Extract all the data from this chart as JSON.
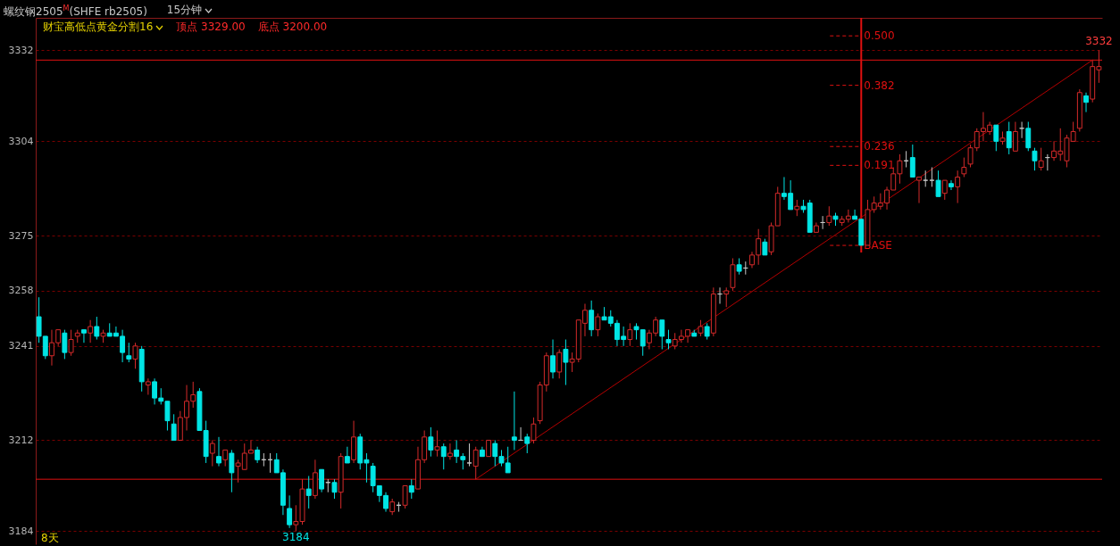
{
  "chart_data": {
    "type": "candlestick",
    "title": "螺纹钢2505$^{M}$(SHFE rb2505)",
    "subtitle": "15分钟",
    "annotations": [
      "财宝高低点黄金分割16",
      "顶点 3329.00",
      "底点 3200.00",
      "8天",
      {
        "text": "3332",
        "y": 3332
      },
      {
        "text": "3184",
        "y": 3184
      }
    ],
    "categories": [
      null,
      null,
      null,
      null,
      null,
      null,
      null,
      null,
      null,
      null,
      null,
      null,
      null,
      null,
      null,
      null,
      null,
      null,
      null,
      null,
      null,
      null,
      null,
      null,
      null,
      null,
      null,
      null,
      null,
      null,
      null,
      null,
      null,
      null,
      null,
      null,
      null,
      null,
      null,
      null,
      null,
      null,
      null,
      null,
      null,
      null,
      null,
      null,
      null,
      null,
      null,
      null,
      null,
      null,
      null,
      null,
      null,
      null,
      null,
      null,
      null,
      null,
      null,
      null,
      null,
      null,
      null,
      null,
      null,
      null,
      null,
      null,
      null,
      null,
      null,
      null,
      null,
      null,
      null,
      null,
      null,
      null,
      null,
      null,
      null,
      null,
      null,
      null,
      null,
      null,
      null,
      null,
      null,
      null,
      null,
      null,
      null,
      null,
      null,
      null,
      null,
      null,
      null,
      null,
      null,
      null,
      null,
      null,
      null,
      null,
      null,
      null,
      null,
      null,
      null,
      null,
      null,
      null,
      null,
      null,
      null,
      null,
      null,
      null,
      null,
      null,
      null,
      null,
      null,
      null,
      null,
      null,
      null,
      null,
      null,
      null,
      null,
      null,
      null,
      null,
      null,
      null,
      null,
      null,
      null,
      null,
      null,
      null,
      null,
      null,
      null,
      null,
      null,
      null,
      null,
      null,
      null,
      null,
      null,
      null,
      null,
      null,
      null,
      null,
      null,
      null
    ],
    "ohlc": [
      [
        3250,
        3256,
        3242,
        3244
      ],
      [
        3244,
        3244,
        3237,
        3238
      ],
      [
        3238,
        3246,
        3235,
        3242
      ],
      [
        3242,
        3246,
        3241,
        3246
      ],
      [
        3245,
        3246,
        3237,
        3239
      ],
      [
        3239,
        3246,
        3238,
        3243
      ],
      [
        3244,
        3246,
        3242,
        3245
      ],
      [
        3246,
        3246,
        3242,
        3245
      ],
      [
        3245,
        3249,
        3242,
        3247
      ],
      [
        3247,
        3250,
        3243,
        3244
      ],
      [
        3244,
        3246,
        3242,
        3245
      ],
      [
        3245,
        3248,
        3244,
        3244
      ],
      [
        3245,
        3247,
        3244,
        3244
      ],
      [
        3244,
        3246,
        3236,
        3239
      ],
      [
        3238,
        3242,
        3236,
        3237
      ],
      [
        3237,
        3242,
        3234,
        3241
      ],
      [
        3240,
        3241,
        3227,
        3230
      ],
      [
        3229,
        3231,
        3226,
        3230
      ],
      [
        3230,
        3231,
        3223,
        3225
      ],
      [
        3225,
        3228,
        3223,
        3224
      ],
      [
        3224,
        3224,
        3215,
        3218
      ],
      [
        3217,
        3220,
        3212,
        3212
      ],
      [
        3212,
        3221,
        3212,
        3219
      ],
      [
        3219,
        3229,
        3215,
        3224
      ],
      [
        3224,
        3230,
        3222,
        3226
      ],
      [
        3227,
        3228,
        3215,
        3215
      ],
      [
        3215,
        3218,
        3205,
        3207
      ],
      [
        3208,
        3212,
        3204,
        3211
      ],
      [
        3207,
        3213,
        3204,
        3205
      ],
      [
        3206,
        3209,
        3204,
        3209
      ],
      [
        3208,
        3209,
        3196,
        3202
      ],
      [
        3204,
        3206,
        3199,
        3205
      ],
      [
        3203,
        3211,
        3203,
        3208
      ],
      [
        3208,
        3212,
        3208,
        3209
      ],
      [
        3209,
        3210,
        3205,
        3206
      ],
      [
        3206,
        3208,
        3204,
        3206
      ],
      [
        3206,
        3208,
        3202,
        3206
      ],
      [
        3206,
        3208,
        3202,
        3202
      ],
      [
        3202,
        3203,
        3189,
        3192
      ],
      [
        3191,
        3195,
        3185,
        3186
      ],
      [
        3186,
        3192,
        3184,
        3187
      ],
      [
        3187,
        3200,
        3186,
        3197
      ],
      [
        3197,
        3201,
        3191,
        3195
      ],
      [
        3195,
        3206,
        3194,
        3202
      ],
      [
        3203,
        3203,
        3196,
        3197
      ],
      [
        3199,
        3200,
        3196,
        3199
      ],
      [
        3199,
        3200,
        3194,
        3196
      ],
      [
        3196,
        3208,
        3191,
        3207
      ],
      [
        3207,
        3210,
        3205,
        3205
      ],
      [
        3206,
        3218,
        3205,
        3213
      ],
      [
        3213,
        3214,
        3203,
        3205
      ],
      [
        3206,
        3208,
        3199,
        3205
      ],
      [
        3204,
        3205,
        3196,
        3198
      ],
      [
        3198,
        3198,
        3193,
        3195
      ],
      [
        3195,
        3196,
        3190,
        3191
      ],
      [
        3190,
        3194,
        3189,
        3193
      ],
      [
        3192,
        3193,
        3190,
        3192
      ],
      [
        3192,
        3198,
        3191,
        3198
      ],
      [
        3198,
        3200,
        3194,
        3196
      ],
      [
        3197,
        3210,
        3197,
        3206
      ],
      [
        3206,
        3215,
        3205,
        3213
      ],
      [
        3213,
        3216,
        3207,
        3209
      ],
      [
        3209,
        3215,
        3207,
        3210
      ],
      [
        3210,
        3211,
        3203,
        3207
      ],
      [
        3207,
        3211,
        3206,
        3208
      ],
      [
        3209,
        3212,
        3205,
        3207
      ],
      [
        3207,
        3208,
        3203,
        3206
      ],
      [
        3205,
        3211,
        3204,
        3205
      ],
      [
        3204,
        3210,
        3200,
        3209
      ],
      [
        3209,
        3210,
        3207,
        3207
      ],
      [
        3207,
        3212,
        3207,
        3212
      ],
      [
        3211,
        3212,
        3204,
        3207
      ],
      [
        3207,
        3209,
        3204,
        3205
      ],
      [
        3205,
        3210,
        3202,
        3202
      ],
      [
        3213,
        3227,
        3209,
        3212
      ],
      [
        3212,
        3216,
        3212,
        3212
      ],
      [
        3213,
        3214,
        3208,
        3211
      ],
      [
        3212,
        3219,
        3211,
        3217
      ],
      [
        3218,
        3230,
        3217,
        3229
      ],
      [
        3229,
        3239,
        3227,
        3238
      ],
      [
        3238,
        3243,
        3231,
        3233
      ],
      [
        3233,
        3240,
        3231,
        3239
      ],
      [
        3240,
        3243,
        3229,
        3236
      ],
      [
        3236,
        3239,
        3233,
        3237
      ],
      [
        3237,
        3249,
        3236,
        3249
      ],
      [
        3248,
        3254,
        3244,
        3252
      ],
      [
        3252,
        3255,
        3244,
        3246
      ],
      [
        3246,
        3251,
        3244,
        3250
      ],
      [
        3250,
        3253,
        3249,
        3249
      ],
      [
        3250,
        3252,
        3247,
        3248
      ],
      [
        3248,
        3249,
        3241,
        3243
      ],
      [
        3244,
        3247,
        3241,
        3243
      ],
      [
        3243,
        3248,
        3241,
        3246
      ],
      [
        3247,
        3248,
        3243,
        3246
      ],
      [
        3246,
        3246,
        3238,
        3241
      ],
      [
        3242,
        3246,
        3240,
        3245
      ],
      [
        3245,
        3250,
        3244,
        3249
      ],
      [
        3249,
        3249,
        3240,
        3244
      ],
      [
        3243,
        3246,
        3240,
        3242
      ],
      [
        3241,
        3245,
        3240,
        3243
      ],
      [
        3243,
        3246,
        3242,
        3244
      ],
      [
        3244,
        3246,
        3242,
        3246
      ],
      [
        3245,
        3246,
        3244,
        3244
      ],
      [
        3245,
        3249,
        3244,
        3247
      ],
      [
        3247,
        3248,
        3243,
        3244
      ],
      [
        3245,
        3259,
        3244,
        3257
      ],
      [
        3257,
        3259,
        3254,
        3257
      ],
      [
        3257,
        3259,
        3253,
        3258
      ],
      [
        3259,
        3268,
        3258,
        3266
      ],
      [
        3266,
        3268,
        3263,
        3264
      ],
      [
        3265,
        3267,
        3263,
        3265
      ],
      [
        3266,
        3270,
        3265,
        3269
      ],
      [
        3269,
        3277,
        3266,
        3274
      ],
      [
        3273,
        3274,
        3269,
        3269
      ],
      [
        3270,
        3279,
        3269,
        3278
      ],
      [
        3278,
        3290,
        3278,
        3288
      ],
      [
        3288,
        3293,
        3286,
        3287
      ],
      [
        3288,
        3292,
        3283,
        3283
      ],
      [
        3283,
        3286,
        3281,
        3284
      ],
      [
        3284,
        3286,
        3282,
        3283
      ],
      [
        3285,
        3286,
        3276,
        3276
      ],
      [
        3276,
        3279,
        3276,
        3278
      ],
      [
        3279,
        3281,
        3277,
        3279
      ],
      [
        3279,
        3284,
        3278,
        3281
      ],
      [
        3281,
        3282,
        3278,
        3280
      ],
      [
        3279,
        3281,
        3278,
        3280
      ],
      [
        3280,
        3283,
        3279,
        3281
      ],
      [
        3281,
        3283,
        3280,
        3280
      ],
      [
        3280,
        3280,
        3272,
        3272
      ],
      [
        3272,
        3286,
        3272,
        3283
      ],
      [
        3283,
        3287,
        3282,
        3285
      ],
      [
        3284,
        3288,
        3283,
        3285
      ],
      [
        3285,
        3290,
        3283,
        3289
      ],
      [
        3289,
        3296,
        3289,
        3294
      ],
      [
        3294,
        3300,
        3291,
        3298
      ],
      [
        3298,
        3301,
        3296,
        3298
      ],
      [
        3299,
        3303,
        3293,
        3293
      ],
      [
        3292,
        3293,
        3285,
        3293
      ],
      [
        3292,
        3295,
        3290,
        3292
      ],
      [
        3292,
        3296,
        3290,
        3292
      ],
      [
        3292,
        3295,
        3287,
        3287
      ],
      [
        3288,
        3292,
        3286,
        3292
      ],
      [
        3291,
        3292,
        3289,
        3290
      ],
      [
        3290,
        3295,
        3285,
        3293
      ],
      [
        3294,
        3299,
        3293,
        3296
      ],
      [
        3297,
        3303,
        3296,
        3302
      ],
      [
        3302,
        3308,
        3301,
        3307
      ],
      [
        3307,
        3313,
        3304,
        3308
      ],
      [
        3307,
        3310,
        3306,
        3309
      ],
      [
        3309,
        3309,
        3301,
        3304
      ],
      [
        3304,
        3307,
        3303,
        3305
      ],
      [
        3307,
        3310,
        3300,
        3302
      ],
      [
        3301,
        3310,
        3301,
        3307
      ],
      [
        3308,
        3310,
        3305,
        3308
      ],
      [
        3308,
        3310,
        3301,
        3302
      ],
      [
        3301,
        3302,
        3295,
        3298
      ],
      [
        3296,
        3302,
        3295,
        3298
      ],
      [
        3299,
        3300,
        3295,
        3299
      ],
      [
        3299,
        3304,
        3298,
        3301
      ],
      [
        3300,
        3308,
        3298,
        3301
      ],
      [
        3298,
        3306,
        3296,
        3305
      ],
      [
        3304,
        3310,
        3304,
        3307
      ],
      [
        3308,
        3320,
        3307,
        3319
      ],
      [
        3318,
        3319,
        3313,
        3316
      ],
      [
        3317,
        3329,
        3316,
        3327
      ],
      [
        3326,
        3332,
        3322,
        3327
      ]
    ],
    "colors": [
      "#00e5e5",
      "#00e5e5",
      "#d42a2a",
      "#d42a2a",
      "#00e5e5",
      "#d42a2a",
      "#d42a2a",
      "#00e5e5",
      "#d42a2a",
      "#00e5e5",
      "#d42a2a",
      "#00e5e5",
      "#00e5e5",
      "#00e5e5",
      "#00e5e5",
      "#d42a2a",
      "#00e5e5",
      "#d42a2a",
      "#00e5e5",
      "#00e5e5",
      "#00e5e5",
      "#00e5e5",
      "#d42a2a",
      "#d42a2a",
      "#d42a2a",
      "#00e5e5",
      "#00e5e5",
      "#d42a2a",
      "#00e5e5",
      "#d42a2a",
      "#00e5e5",
      "#d42a2a",
      "#d42a2a",
      "#d42a2a",
      "#00e5e5",
      "#c8c8c8",
      "#c8c8c8",
      "#00e5e5",
      "#00e5e5",
      "#00e5e5",
      "#d42a2a",
      "#d42a2a",
      "#00e5e5",
      "#d42a2a",
      "#00e5e5",
      "#c8c8c8",
      "#00e5e5",
      "#d42a2a",
      "#00e5e5",
      "#d42a2a",
      "#00e5e5",
      "#00e5e5",
      "#00e5e5",
      "#00e5e5",
      "#00e5e5",
      "#d42a2a",
      "#c8c8c8",
      "#d42a2a",
      "#00e5e5",
      "#d42a2a",
      "#d42a2a",
      "#00e5e5",
      "#d42a2a",
      "#00e5e5",
      "#d42a2a",
      "#00e5e5",
      "#00e5e5",
      "#c8c8c8",
      "#d42a2a",
      "#00e5e5",
      "#d42a2a",
      "#00e5e5",
      "#00e5e5",
      "#00e5e5",
      "#00e5e5",
      "#c8c8c8",
      "#00e5e5",
      "#d42a2a",
      "#d42a2a",
      "#d42a2a",
      "#00e5e5",
      "#d42a2a",
      "#00e5e5",
      "#d42a2a",
      "#d42a2a",
      "#d42a2a",
      "#00e5e5",
      "#d42a2a",
      "#00e5e5",
      "#00e5e5",
      "#00e5e5",
      "#00e5e5",
      "#d42a2a",
      "#00e5e5",
      "#00e5e5",
      "#d42a2a",
      "#d42a2a",
      "#00e5e5",
      "#00e5e5",
      "#d42a2a",
      "#d42a2a",
      "#d42a2a",
      "#00e5e5",
      "#d42a2a",
      "#00e5e5",
      "#d42a2a",
      "#c8c8c8",
      "#d42a2a",
      "#d42a2a",
      "#00e5e5",
      "#c8c8c8",
      "#d42a2a",
      "#d42a2a",
      "#00e5e5",
      "#d42a2a",
      "#d42a2a",
      "#00e5e5",
      "#00e5e5",
      "#d42a2a",
      "#00e5e5",
      "#00e5e5",
      "#d42a2a",
      "#c8c8c8",
      "#d42a2a",
      "#00e5e5",
      "#d42a2a",
      "#d42a2a",
      "#00e5e5",
      "#00e5e5",
      "#d42a2a",
      "#d42a2a",
      "#d42a2a",
      "#d42a2a",
      "#d42a2a",
      "#d42a2a",
      "#c8c8c8",
      "#00e5e5",
      "#d42a2a",
      "#c8c8c8",
      "#c8c8c8",
      "#00e5e5",
      "#d42a2a",
      "#00e5e5",
      "#d42a2a",
      "#d42a2a",
      "#d42a2a",
      "#d42a2a",
      "#d42a2a",
      "#d42a2a",
      "#00e5e5",
      "#d42a2a",
      "#00e5e5",
      "#d42a2a",
      "#c8c8c8",
      "#00e5e5",
      "#00e5e5",
      "#d42a2a",
      "#c8c8c8",
      "#d42a2a",
      "#d42a2a",
      "#d42a2a",
      "#d42a2a",
      "#d42a2a",
      "#00e5e5",
      "#d42a2a",
      "#d42a2a"
    ],
    "series": [
      {
        "type": "line",
        "color": "#b40000",
        "values": [
          null,
          null,
          null,
          null,
          null,
          null,
          null,
          null,
          null,
          null,
          null,
          null,
          null,
          null,
          null,
          null,
          null,
          null,
          null,
          null,
          null,
          null,
          null,
          null,
          null,
          null,
          null,
          null,
          null,
          null,
          null,
          null,
          null,
          null,
          null,
          null,
          null,
          null,
          null,
          null,
          null,
          null,
          null,
          null,
          null,
          null,
          null,
          null,
          null,
          null,
          null,
          null,
          null,
          null,
          null,
          null,
          null,
          null,
          null,
          null,
          null,
          null,
          null,
          null,
          null,
          null,
          null,
          null,
          3200,
          null,
          null,
          null,
          null,
          null,
          null,
          null,
          null,
          null,
          null,
          null,
          null,
          null,
          null,
          null,
          null,
          null,
          null,
          null,
          null,
          null,
          null,
          null,
          null,
          null,
          null,
          null,
          null,
          null,
          null,
          null,
          null,
          null,
          null,
          null,
          null,
          null,
          null,
          null,
          null,
          null,
          null,
          null,
          null,
          null,
          null,
          null,
          null,
          null,
          null,
          null,
          null,
          null,
          null,
          null,
          null,
          null,
          null,
          null,
          null,
          null,
          null,
          null,
          null,
          null,
          null,
          null,
          null,
          null,
          null,
          null,
          null,
          null,
          null,
          null,
          null,
          null,
          null,
          null,
          null,
          null,
          null,
          null,
          null,
          null,
          null,
          null,
          null,
          null,
          null,
          null,
          null,
          null,
          null,
          null,
          3329,
          null
        ]
      }
    ],
    "ylim": [
      3180,
      3342
    ],
    "yticks": [
      3184,
      3212,
      3241,
      3258,
      3275,
      3304,
      3332
    ],
    "y2lim": [
      -0.713,
      0.543
    ],
    "ref_lines": [
      {
        "axis": "y",
        "value": 3329,
        "color": "#e01010"
      },
      {
        "axis": "y",
        "value": 3200,
        "color": "#e01010"
      },
      {
        "axis": "y2",
        "value": 0.5,
        "label": "0.500",
        "color": "#e01010",
        "line_style": "dashed"
      },
      {
        "axis": "y2",
        "value": 0.382,
        "label": "0.382",
        "color": "#e01010",
        "line_style": "dashed"
      },
      {
        "axis": "y2",
        "value": 0.236,
        "label": "0.236",
        "color": "#e01010",
        "line_style": "dashed"
      },
      {
        "axis": "y2",
        "value": 0.191,
        "label": "0.191",
        "color": "#e01010",
        "line_style": "dashed"
      },
      {
        "axis": "y2",
        "value": 0,
        "label": "BASE",
        "color": "#e01010",
        "line_style": "dashed"
      }
    ],
    "grid": "y",
    "tick_labels": "y"
  }
}
